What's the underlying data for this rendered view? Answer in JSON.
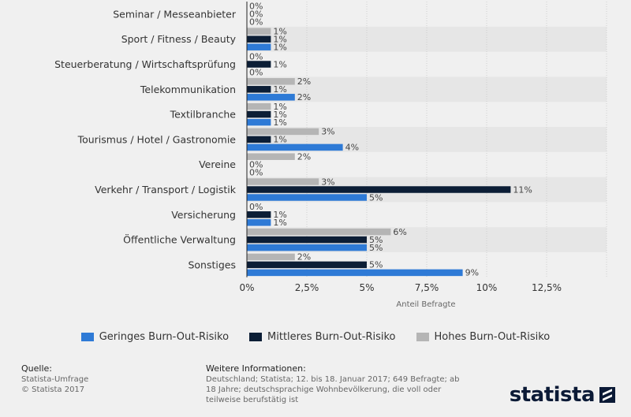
{
  "chart_data": {
    "type": "bar",
    "orientation": "horizontal",
    "categories": [
      "Seminar / Messeanbieter",
      "Sport / Fitness / Beauty",
      "Steuerberatung / Wirtschaftsprüfung",
      "Telekommunikation",
      "Textilbranche",
      "Tourismus / Hotel / Gastronomie",
      "Vereine",
      "Verkehr / Transport / Logistik",
      "Versicherung",
      "Öffentliche Verwaltung",
      "Sonstiges"
    ],
    "series": [
      {
        "name": "Hohes Burn-Out-Risiko",
        "color": "#b5b5b5",
        "values": [
          0,
          1,
          0,
          2,
          1,
          3,
          2,
          3,
          0,
          6,
          2
        ]
      },
      {
        "name": "Mittleres Burn-Out-Risiko",
        "color": "#0c1e36",
        "values": [
          0,
          1,
          1,
          1,
          1,
          1,
          0,
          11,
          1,
          5,
          5
        ]
      },
      {
        "name": "Geringes Burn-Out-Risiko",
        "color": "#2e7ad6",
        "values": [
          0,
          1,
          0,
          2,
          1,
          4,
          0,
          5,
          1,
          5,
          9
        ]
      }
    ],
    "x_ticks": [
      "0%",
      "2,5%",
      "5%",
      "7,5%",
      "10%",
      "12,5%"
    ],
    "x_tick_values": [
      0,
      2.5,
      5,
      7.5,
      10,
      12.5
    ],
    "xlim": [
      0,
      15
    ],
    "xlabel": "Anteil Befragte",
    "value_suffix": "%",
    "grid": true,
    "legend_position": "bottom"
  },
  "legend": {
    "items": [
      {
        "label": "Geringes Burn-Out-Risiko",
        "color": "#2e7ad6"
      },
      {
        "label": "Mittleres Burn-Out-Risiko",
        "color": "#0c1e36"
      },
      {
        "label": "Hohes Burn-Out-Risiko",
        "color": "#b5b5b5"
      }
    ]
  },
  "footer": {
    "source_heading": "Quelle:",
    "source_line1": "Statista-Umfrage",
    "source_line2": "© Statista 2017",
    "info_heading": "Weitere Informationen:",
    "info_text": "Deutschland; Statista; 12. bis 18. Januar 2017; 649 Befragte; ab 18 Jahre; deutschsprachige Wohnbevölkerung, die voll oder teilweise berufstätig ist"
  },
  "logo": {
    "text": "statista"
  }
}
